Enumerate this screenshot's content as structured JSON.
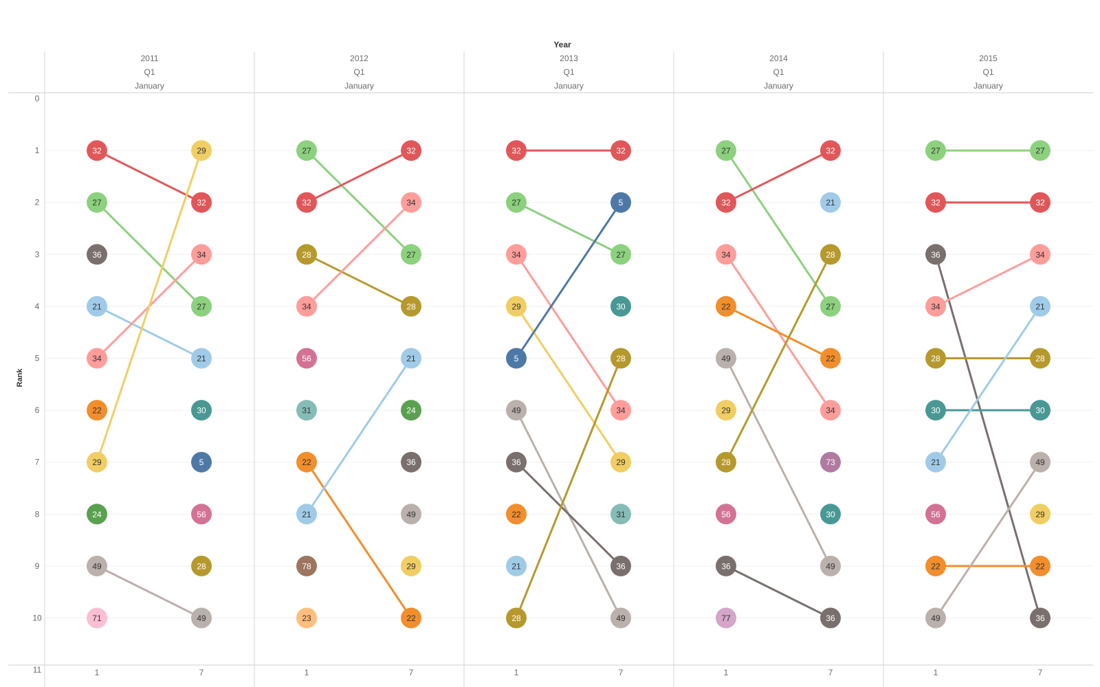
{
  "chart_data": {
    "type": "bump",
    "header_title": "Year",
    "ylabel": "Rank",
    "ylim": [
      0,
      11
    ],
    "y_ticks": [
      "0",
      "1",
      "2",
      "3",
      "4",
      "5",
      "6",
      "7",
      "8",
      "9",
      "10",
      "11"
    ],
    "x_ticks": [
      "1",
      "7"
    ],
    "grid": true,
    "colors": {
      "5": "#4e79a7",
      "21": "#a0cbe8",
      "22": "#f28e2b",
      "23": "#ffbe7d",
      "24": "#59a14f",
      "27": "#8cd17d",
      "28": "#b6992d",
      "29": "#f1ce63",
      "30": "#499894",
      "31": "#86bcb6",
      "32": "#e15759",
      "34": "#ff9d9a",
      "36": "#79706e",
      "49": "#bab0ac",
      "56": "#d37295",
      "71": "#fabfd2",
      "73": "#b07aa1",
      "77": "#d4a6c8",
      "78": "#9d7660"
    },
    "panels": [
      {
        "year": "2011",
        "quarter": "Q1",
        "month": "January",
        "month1": [
          {
            "id": "32",
            "rank": 1
          },
          {
            "id": "27",
            "rank": 2
          },
          {
            "id": "36",
            "rank": 3
          },
          {
            "id": "21",
            "rank": 4
          },
          {
            "id": "34",
            "rank": 5
          },
          {
            "id": "22",
            "rank": 6
          },
          {
            "id": "29",
            "rank": 7
          },
          {
            "id": "24",
            "rank": 8
          },
          {
            "id": "49",
            "rank": 9
          },
          {
            "id": "71",
            "rank": 10
          }
        ],
        "month7": [
          {
            "id": "29",
            "rank": 1
          },
          {
            "id": "32",
            "rank": 2
          },
          {
            "id": "34",
            "rank": 3
          },
          {
            "id": "27",
            "rank": 4
          },
          {
            "id": "21",
            "rank": 5
          },
          {
            "id": "30",
            "rank": 6
          },
          {
            "id": "5",
            "rank": 7
          },
          {
            "id": "56",
            "rank": 8
          },
          {
            "id": "28",
            "rank": 9
          },
          {
            "id": "49",
            "rank": 10
          }
        ]
      },
      {
        "year": "2012",
        "quarter": "Q1",
        "month": "January",
        "month1": [
          {
            "id": "27",
            "rank": 1
          },
          {
            "id": "32",
            "rank": 2
          },
          {
            "id": "28",
            "rank": 3
          },
          {
            "id": "34",
            "rank": 4
          },
          {
            "id": "56",
            "rank": 5
          },
          {
            "id": "31",
            "rank": 6
          },
          {
            "id": "22",
            "rank": 7
          },
          {
            "id": "21",
            "rank": 8
          },
          {
            "id": "78",
            "rank": 9
          },
          {
            "id": "23",
            "rank": 10
          }
        ],
        "month7": [
          {
            "id": "32",
            "rank": 1
          },
          {
            "id": "34",
            "rank": 2
          },
          {
            "id": "27",
            "rank": 3
          },
          {
            "id": "28",
            "rank": 4
          },
          {
            "id": "21",
            "rank": 5
          },
          {
            "id": "24",
            "rank": 6
          },
          {
            "id": "36",
            "rank": 7
          },
          {
            "id": "49",
            "rank": 8
          },
          {
            "id": "29",
            "rank": 9
          },
          {
            "id": "22",
            "rank": 10
          }
        ]
      },
      {
        "year": "2013",
        "quarter": "Q1",
        "month": "January",
        "month1": [
          {
            "id": "32",
            "rank": 1
          },
          {
            "id": "27",
            "rank": 2
          },
          {
            "id": "34",
            "rank": 3
          },
          {
            "id": "29",
            "rank": 4
          },
          {
            "id": "5",
            "rank": 5
          },
          {
            "id": "49",
            "rank": 6
          },
          {
            "id": "36",
            "rank": 7
          },
          {
            "id": "22",
            "rank": 8
          },
          {
            "id": "21",
            "rank": 9
          },
          {
            "id": "28",
            "rank": 10
          }
        ],
        "month7": [
          {
            "id": "32",
            "rank": 1
          },
          {
            "id": "5",
            "rank": 2
          },
          {
            "id": "27",
            "rank": 3
          },
          {
            "id": "30",
            "rank": 4
          },
          {
            "id": "28",
            "rank": 5
          },
          {
            "id": "34",
            "rank": 6
          },
          {
            "id": "29",
            "rank": 7
          },
          {
            "id": "31",
            "rank": 8
          },
          {
            "id": "36",
            "rank": 9
          },
          {
            "id": "49",
            "rank": 10
          }
        ]
      },
      {
        "year": "2014",
        "quarter": "Q1",
        "month": "January",
        "month1": [
          {
            "id": "27",
            "rank": 1
          },
          {
            "id": "32",
            "rank": 2
          },
          {
            "id": "34",
            "rank": 3
          },
          {
            "id": "22",
            "rank": 4
          },
          {
            "id": "49",
            "rank": 5
          },
          {
            "id": "29",
            "rank": 6
          },
          {
            "id": "28",
            "rank": 7
          },
          {
            "id": "56",
            "rank": 8
          },
          {
            "id": "36",
            "rank": 9
          },
          {
            "id": "77",
            "rank": 10
          }
        ],
        "month7": [
          {
            "id": "32",
            "rank": 1
          },
          {
            "id": "21",
            "rank": 2
          },
          {
            "id": "28",
            "rank": 3
          },
          {
            "id": "27",
            "rank": 4
          },
          {
            "id": "22",
            "rank": 5
          },
          {
            "id": "34",
            "rank": 6
          },
          {
            "id": "73",
            "rank": 7
          },
          {
            "id": "30",
            "rank": 8
          },
          {
            "id": "49",
            "rank": 9
          },
          {
            "id": "36",
            "rank": 10
          }
        ]
      },
      {
        "year": "2015",
        "quarter": "Q1",
        "month": "January",
        "month1": [
          {
            "id": "27",
            "rank": 1
          },
          {
            "id": "32",
            "rank": 2
          },
          {
            "id": "36",
            "rank": 3
          },
          {
            "id": "34",
            "rank": 4
          },
          {
            "id": "28",
            "rank": 5
          },
          {
            "id": "30",
            "rank": 6
          },
          {
            "id": "21",
            "rank": 7
          },
          {
            "id": "56",
            "rank": 8
          },
          {
            "id": "22",
            "rank": 9
          },
          {
            "id": "49",
            "rank": 10
          }
        ],
        "month7": [
          {
            "id": "27",
            "rank": 1
          },
          {
            "id": "32",
            "rank": 2
          },
          {
            "id": "34",
            "rank": 3
          },
          {
            "id": "21",
            "rank": 4
          },
          {
            "id": "28",
            "rank": 5
          },
          {
            "id": "30",
            "rank": 6
          },
          {
            "id": "49",
            "rank": 7
          },
          {
            "id": "29",
            "rank": 8
          },
          {
            "id": "22",
            "rank": 9
          },
          {
            "id": "36",
            "rank": 10
          }
        ]
      }
    ]
  }
}
